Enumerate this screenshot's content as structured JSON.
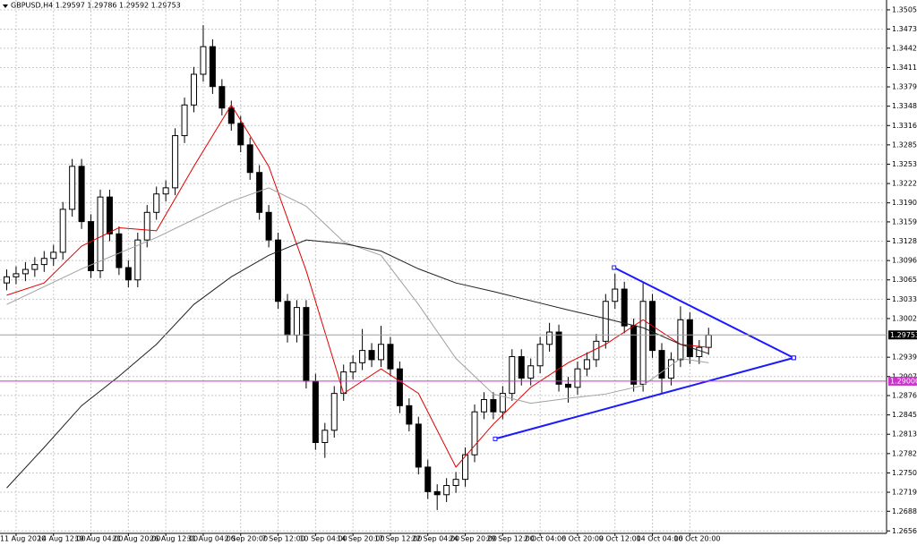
{
  "chart_data": {
    "type": "candlestick",
    "title": "GBPUSD,H4  1.29597 1.29786 1.29592 1.29753",
    "categories": [
      null,
      "11 Aug 2020",
      null,
      null,
      null,
      "14 Aug 12:00",
      null,
      null,
      null,
      "19 Aug 04:00",
      null,
      null,
      null,
      "21 Aug 20:00",
      null,
      null,
      null,
      "26 Aug 12:00",
      null,
      null,
      null,
      "31 Aug 04:00",
      null,
      null,
      null,
      "2 Sep 20:00",
      null,
      null,
      null,
      "7 Sep 12:00",
      null,
      null,
      null,
      "10 Sep 04:00",
      null,
      null,
      null,
      "14 Sep 20:00",
      null,
      null,
      null,
      "17 Sep 12:00",
      null,
      null,
      null,
      "22 Sep 04:00",
      null,
      null,
      null,
      "24 Sep 20:00",
      null,
      null,
      null,
      "29 Sep 12:00",
      null,
      null,
      null,
      "2 Oct 04:00",
      null,
      null,
      null,
      "6 Oct 20:00",
      null,
      null,
      null,
      "9 Oct 12:00",
      null,
      null,
      null,
      "14 Oct 04:00",
      null,
      null,
      null,
      "16 Oct 20:00",
      null,
      null
    ],
    "open": [
      1.306,
      1.307,
      1.3075,
      1.3082,
      1.309,
      1.31,
      1.311,
      1.318,
      1.325,
      1.316,
      1.308,
      1.32,
      1.314,
      1.3085,
      1.3065,
      1.313,
      1.3175,
      1.3205,
      1.3215,
      1.33,
      1.335,
      1.34,
      1.3445,
      1.338,
      1.3345,
      1.332,
      1.3285,
      1.324,
      1.3175,
      1.313,
      1.303,
      1.2975,
      1.302,
      1.29,
      1.28,
      1.282,
      1.288,
      1.2915,
      1.293,
      1.295,
      1.2935,
      1.296,
      1.292,
      1.286,
      1.283,
      1.276,
      1.272,
      1.2715,
      1.273,
      1.274,
      1.278,
      1.285,
      1.287,
      1.285,
      1.288,
      1.294,
      1.2905,
      1.2925,
      1.296,
      1.298,
      1.2895,
      1.289,
      1.292,
      1.2935,
      1.2965,
      1.303,
      1.305,
      1.299,
      1.2895,
      1.303,
      1.295,
      1.2905,
      1.2935,
      1.3,
      1.294,
      1.2955
    ],
    "high": [
      1.3082,
      1.3087,
      1.3094,
      1.3102,
      1.3112,
      1.3122,
      1.3192,
      1.3262,
      1.3262,
      1.3172,
      1.3212,
      1.3212,
      1.3152,
      1.3097,
      1.3142,
      1.3187,
      1.3217,
      1.3227,
      1.3312,
      1.3362,
      1.3412,
      1.348,
      1.3457,
      1.3392,
      1.3357,
      1.3332,
      1.3297,
      1.3252,
      1.3187,
      1.3142,
      1.3042,
      1.3032,
      1.3032,
      1.2912,
      1.2832,
      1.2892,
      1.2927,
      1.2942,
      1.2985,
      1.2962,
      1.299,
      1.2972,
      1.2932,
      1.2872,
      1.2842,
      1.2772,
      1.2732,
      1.2742,
      1.2752,
      1.2792,
      1.2862,
      1.2882,
      1.2882,
      1.2892,
      1.2952,
      1.2952,
      1.2937,
      1.2972,
      1.2995,
      1.2992,
      1.2907,
      1.2932,
      1.2947,
      1.2977,
      1.3042,
      1.3075,
      1.3062,
      1.3002,
      1.306,
      1.3042,
      1.2962,
      1.2947,
      1.3022,
      1.3012,
      1.2967,
      1.2987
    ],
    "low": [
      1.3048,
      1.3058,
      1.3063,
      1.307,
      1.3078,
      1.3088,
      1.3098,
      1.3168,
      1.3148,
      1.3068,
      1.3068,
      1.3128,
      1.3073,
      1.3053,
      1.3053,
      1.3118,
      1.3163,
      1.3193,
      1.3203,
      1.3288,
      1.3338,
      1.3388,
      1.3368,
      1.3333,
      1.3308,
      1.3273,
      1.3228,
      1.3163,
      1.3118,
      1.3018,
      1.2963,
      1.2963,
      1.2888,
      1.2788,
      1.2775,
      1.2808,
      1.2868,
      1.2903,
      1.2918,
      1.2923,
      1.2923,
      1.2908,
      1.2848,
      1.2818,
      1.2748,
      1.2708,
      1.269,
      1.2703,
      1.2718,
      1.2728,
      1.2768,
      1.2838,
      1.2838,
      1.2838,
      1.2868,
      1.2893,
      1.2893,
      1.2913,
      1.2948,
      1.2883,
      1.2865,
      1.2878,
      1.2908,
      1.2923,
      1.2953,
      1.3018,
      1.2978,
      1.2883,
      1.2883,
      1.2938,
      1.288,
      1.2893,
      1.2923,
      1.2928,
      1.2928,
      1.2943
    ],
    "close": [
      1.307,
      1.3075,
      1.3082,
      1.309,
      1.31,
      1.311,
      1.318,
      1.325,
      1.316,
      1.308,
      1.32,
      1.314,
      1.3085,
      1.3065,
      1.313,
      1.3175,
      1.3205,
      1.3215,
      1.33,
      1.335,
      1.34,
      1.3445,
      1.338,
      1.3345,
      1.332,
      1.3285,
      1.324,
      1.3175,
      1.313,
      1.303,
      1.2975,
      1.302,
      1.29,
      1.28,
      1.282,
      1.288,
      1.2915,
      1.293,
      1.295,
      1.2935,
      1.296,
      1.292,
      1.286,
      1.283,
      1.276,
      1.272,
      1.2715,
      1.273,
      1.274,
      1.278,
      1.285,
      1.287,
      1.285,
      1.288,
      1.294,
      1.2905,
      1.2925,
      1.296,
      1.298,
      1.2895,
      1.289,
      1.292,
      1.2935,
      1.2965,
      1.303,
      1.305,
      1.299,
      1.2895,
      1.303,
      1.295,
      1.2905,
      1.2935,
      1.3,
      1.294,
      1.2955,
      1.2975
    ],
    "candle_color": "#000000",
    "indicators": [
      {
        "color": "#e00000",
        "x": [
          0,
          4,
          8,
          12,
          16,
          20,
          24,
          28,
          32,
          36,
          40,
          44,
          48,
          52,
          56,
          60,
          64,
          68,
          72,
          75
        ],
        "values": [
          1.304,
          1.306,
          1.312,
          1.315,
          1.3145,
          1.325,
          1.335,
          1.325,
          1.308,
          1.288,
          1.292,
          1.288,
          1.276,
          1.283,
          1.289,
          1.293,
          1.296,
          1.3,
          1.296,
          1.2955
        ]
      },
      {
        "color": "#a0a0a0",
        "x": [
          0,
          8,
          16,
          24,
          28,
          32,
          36,
          40,
          44,
          48,
          52,
          56,
          60,
          64,
          68,
          72,
          75
        ],
        "values": [
          1.3025,
          1.3083,
          1.3134,
          1.3193,
          1.3215,
          1.3185,
          1.3127,
          1.3105,
          1.3025,
          1.2937,
          1.2879,
          1.2864,
          1.2872,
          1.2879,
          1.2893,
          1.2937,
          1.293
        ]
      },
      {
        "color": "#202020",
        "x": [
          0,
          4,
          8,
          12,
          16,
          20,
          24,
          28,
          32,
          36,
          40,
          44,
          48,
          52,
          56,
          60,
          64,
          68,
          72,
          75
        ],
        "values": [
          1.2726,
          1.2792,
          1.286,
          1.2908,
          1.296,
          1.3025,
          1.307,
          1.3105,
          1.313,
          1.3124,
          1.3112,
          1.3083,
          1.306,
          1.3046,
          1.3031,
          1.3016,
          1.3002,
          1.2987,
          1.296,
          1.2945
        ]
      }
    ],
    "trendlines": [
      {
        "color": "#1a1aff",
        "x": [
          64.9,
          84.1
        ],
        "values": [
          1.3085,
          1.2938
        ]
      },
      {
        "color": "#1a1aff",
        "x": [
          52.2,
          84.1
        ],
        "values": [
          1.2806,
          1.2938
        ]
      }
    ],
    "hlines": [
      {
        "value": 1.29753,
        "color": "#a0a0a0",
        "box": "#000000"
      },
      {
        "value": 1.29,
        "label": "1.29000",
        "color": "#cc33cc",
        "box": "#cc33cc"
      }
    ],
    "ylim": [
      1.2652,
      1.3521
    ],
    "yticks": [
      {
        "value": 1.3505,
        "label": "1.35050"
      },
      {
        "value": 1.34735,
        "label": "1.34735"
      },
      {
        "value": 1.34425,
        "label": "1.34425"
      },
      {
        "value": 1.3411,
        "label": "1.34110"
      },
      {
        "value": 1.33795,
        "label": "1.33795"
      },
      {
        "value": 1.3348,
        "label": "1.33480"
      },
      {
        "value": 1.33165,
        "label": "1.33165"
      },
      {
        "value": 1.3285,
        "label": "1.32850"
      },
      {
        "value": 1.32535,
        "label": "1.32535"
      },
      {
        "value": 1.3222,
        "label": "1.32220"
      },
      {
        "value": 1.31905,
        "label": "1.31905"
      },
      {
        "value": 1.31595,
        "label": "1.31595"
      },
      {
        "value": 1.3128,
        "label": "1.31280"
      },
      {
        "value": 1.30965,
        "label": "1.30965"
      },
      {
        "value": 1.3065,
        "label": "1.30650"
      },
      {
        "value": 1.30335,
        "label": "1.30335"
      },
      {
        "value": 1.3002,
        "label": "1.30020"
      },
      {
        "value": 1.2939,
        "label": "1.29390"
      },
      {
        "value": 1.29075,
        "label": "1.29075"
      },
      {
        "value": 1.28765,
        "label": "1.28765"
      },
      {
        "value": 1.2845,
        "label": "1.28450"
      },
      {
        "value": 1.28135,
        "label": "1.28135"
      },
      {
        "value": 1.2782,
        "label": "1.27820"
      },
      {
        "value": 1.27505,
        "label": "1.27505"
      },
      {
        "value": 1.2719,
        "label": "1.27190"
      },
      {
        "value": 1.2688,
        "label": "1.26880"
      },
      {
        "value": 1.2656,
        "label": "1.26560"
      }
    ],
    "grid": true
  }
}
